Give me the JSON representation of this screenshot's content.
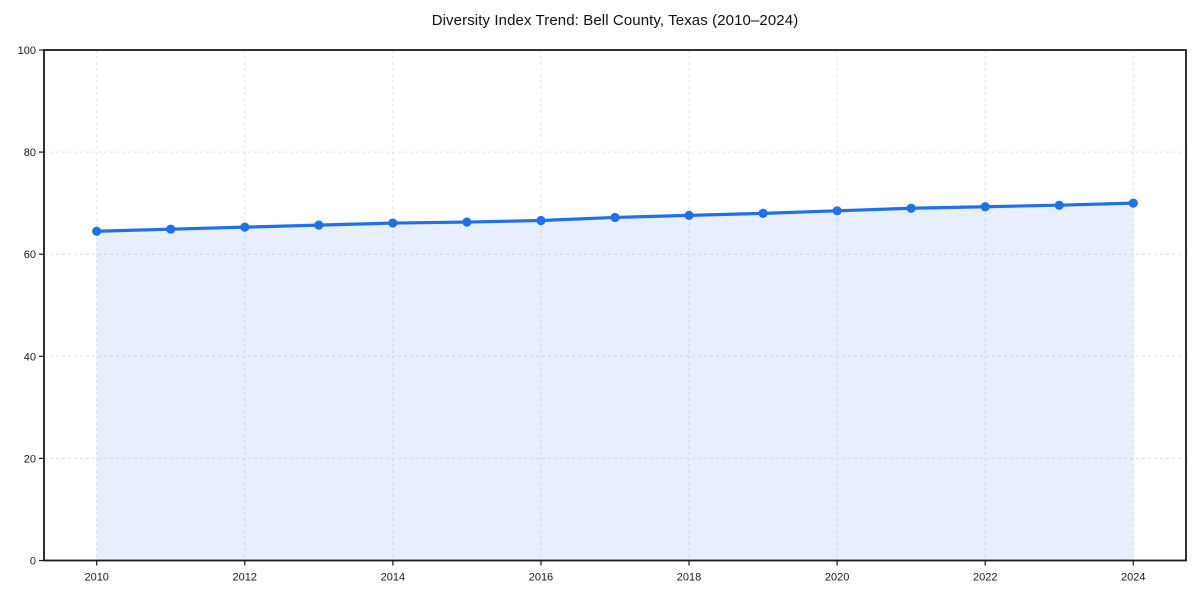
{
  "chart_data": {
    "type": "line",
    "title": "Diversity Index Trend: Bell County, Texas (2010–2024)",
    "xlabel": "",
    "ylabel": "",
    "x": [
      2010,
      2011,
      2012,
      2013,
      2014,
      2015,
      2016,
      2017,
      2018,
      2019,
      2020,
      2021,
      2022,
      2023,
      2024
    ],
    "series": [
      {
        "name": "Diversity Index",
        "values": [
          64.5,
          64.9,
          65.3,
          65.7,
          66.1,
          66.3,
          66.6,
          67.2,
          67.6,
          68.0,
          68.5,
          69.0,
          69.3,
          69.6,
          70.0
        ]
      }
    ],
    "ylim": [
      0,
      100
    ],
    "yticks": [
      0,
      20,
      40,
      60,
      80,
      100
    ],
    "xticks": [
      2010,
      2012,
      2014,
      2016,
      2018,
      2020,
      2022,
      2024
    ],
    "grid": true,
    "legend": "none",
    "area_fill": true,
    "markers": true,
    "colors": {
      "line": "#2071e8",
      "marker": "#2071e8",
      "fill": "rgba(32,113,232,0.11)",
      "grid": "#e3e3e3",
      "axis": "#1a1a1a",
      "tick_label": "#1a1a1a",
      "title": "#111111",
      "background": "#ffffff"
    }
  }
}
